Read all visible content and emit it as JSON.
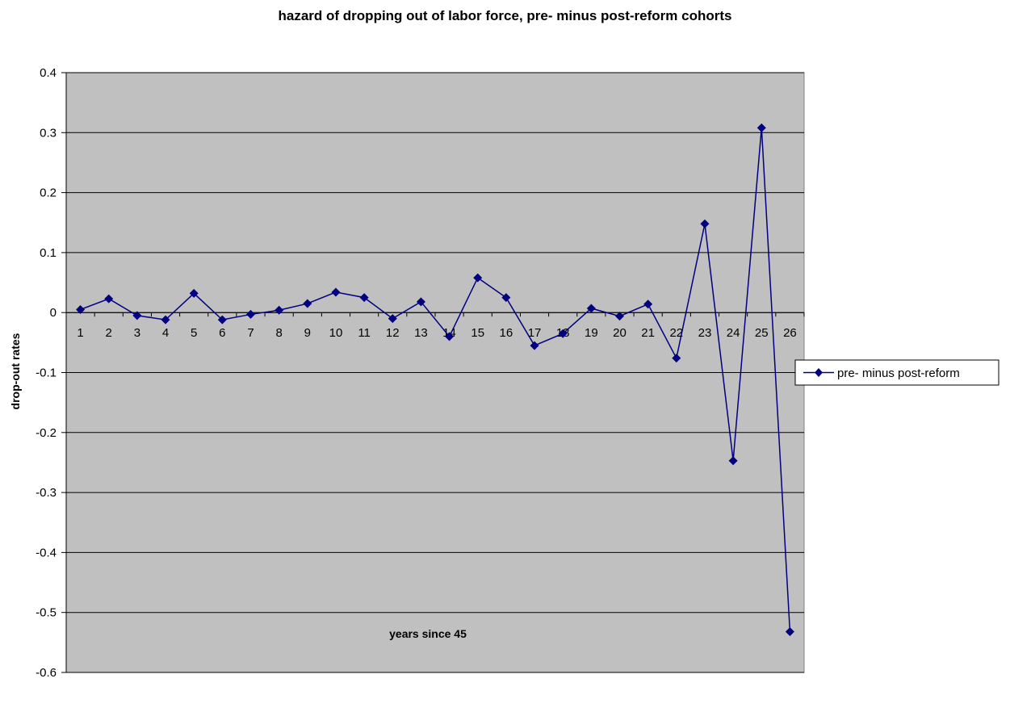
{
  "chart_data": {
    "type": "line",
    "title": "hazard of dropping out of labor force, pre- minus post-reform cohorts",
    "xlabel": "years since 45",
    "ylabel": "drop-out rates",
    "categories": [
      "1",
      "2",
      "3",
      "4",
      "5",
      "6",
      "7",
      "8",
      "9",
      "10",
      "11",
      "12",
      "13",
      "14",
      "15",
      "16",
      "17",
      "18",
      "19",
      "20",
      "21",
      "22",
      "23",
      "24",
      "25",
      "26"
    ],
    "series": [
      {
        "name": "pre- minus post-reform",
        "color": "#000080",
        "marker": "diamond",
        "values": [
          0.005,
          0.023,
          -0.005,
          -0.012,
          0.032,
          -0.012,
          -0.003,
          0.004,
          0.015,
          0.034,
          0.025,
          -0.01,
          0.018,
          -0.04,
          0.058,
          0.025,
          -0.055,
          -0.035,
          0.007,
          -0.006,
          0.014,
          -0.076,
          0.148,
          -0.247,
          0.308,
          -0.532
        ]
      }
    ],
    "ylim": [
      -0.6,
      0.4
    ],
    "yticks": [
      "0.4",
      "0.3",
      "0.2",
      "0.1",
      "0",
      "-0.1",
      "-0.2",
      "-0.3",
      "-0.4",
      "-0.5",
      "-0.6"
    ],
    "grid": true,
    "plot_background": "#c0c0c0",
    "legend_position": "right"
  }
}
